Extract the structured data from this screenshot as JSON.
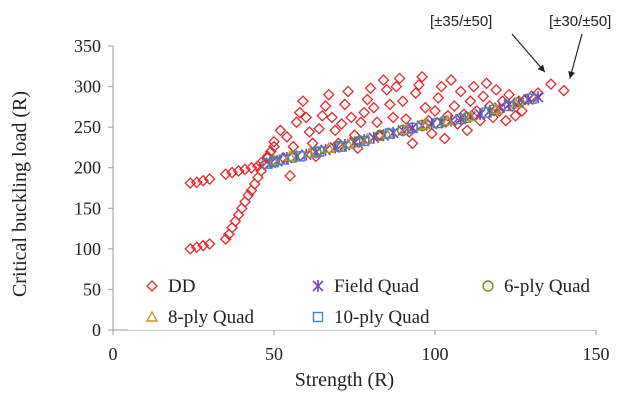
{
  "chart_data": {
    "type": "scatter",
    "xlabel": "Strength (R)",
    "ylabel": "Critical buckling load (R)",
    "xlim": [
      0,
      150
    ],
    "ylim": [
      0,
      350
    ],
    "xticks": [
      0,
      50,
      100,
      150
    ],
    "yticks": [
      0,
      50,
      100,
      150,
      200,
      250,
      300,
      350
    ],
    "grid": false,
    "legend_position": "bottom-inside",
    "annotations": [
      {
        "text": "[±35/±50]",
        "points_to": [
          136,
          303
        ]
      },
      {
        "text": "[±30/±50]",
        "points_to": [
          140,
          295
        ]
      }
    ],
    "series": [
      {
        "name": "DD",
        "marker": "diamond",
        "color": "#e8262a",
        "points": [
          [
            24,
            100
          ],
          [
            26,
            102
          ],
          [
            28,
            104
          ],
          [
            30,
            106
          ],
          [
            24,
            181
          ],
          [
            26,
            182
          ],
          [
            28,
            184
          ],
          [
            30,
            186
          ],
          [
            35,
            112
          ],
          [
            36,
            118
          ],
          [
            37,
            126
          ],
          [
            38,
            134
          ],
          [
            39,
            142
          ],
          [
            40,
            150
          ],
          [
            41,
            158
          ],
          [
            42,
            166
          ],
          [
            43,
            172
          ],
          [
            44,
            180
          ],
          [
            45,
            188
          ],
          [
            46,
            196
          ],
          [
            47,
            204
          ],
          [
            48,
            212
          ],
          [
            49,
            220
          ],
          [
            50,
            226
          ],
          [
            35,
            192
          ],
          [
            37,
            194
          ],
          [
            39,
            196
          ],
          [
            41,
            198
          ],
          [
            43,
            200
          ],
          [
            45,
            202
          ],
          [
            46,
            206
          ],
          [
            48,
            214
          ],
          [
            50,
            232
          ],
          [
            52,
            246
          ],
          [
            53,
            212
          ],
          [
            54,
            238
          ],
          [
            55,
            190
          ],
          [
            56,
            226
          ],
          [
            57,
            256
          ],
          [
            58,
            268
          ],
          [
            59,
            282
          ],
          [
            60,
            262
          ],
          [
            61,
            244
          ],
          [
            62,
            230
          ],
          [
            63,
            214
          ],
          [
            64,
            248
          ],
          [
            65,
            264
          ],
          [
            66,
            276
          ],
          [
            67,
            290
          ],
          [
            68,
            262
          ],
          [
            69,
            246
          ],
          [
            70,
            230
          ],
          [
            71,
            254
          ],
          [
            72,
            278
          ],
          [
            73,
            294
          ],
          [
            74,
            262
          ],
          [
            75,
            240
          ],
          [
            76,
            224
          ],
          [
            77,
            256
          ],
          [
            78,
            268
          ],
          [
            79,
            284
          ],
          [
            80,
            298
          ],
          [
            81,
            274
          ],
          [
            82,
            256
          ],
          [
            83,
            240
          ],
          [
            84,
            308
          ],
          [
            85,
            296
          ],
          [
            86,
            278
          ],
          [
            87,
            262
          ],
          [
            88,
            300
          ],
          [
            89,
            310
          ],
          [
            90,
            282
          ],
          [
            91,
            260
          ],
          [
            92,
            244
          ],
          [
            93,
            230
          ],
          [
            94,
            292
          ],
          [
            95,
            302
          ],
          [
            96,
            312
          ],
          [
            97,
            274
          ],
          [
            98,
            258
          ],
          [
            99,
            242
          ],
          [
            100,
            270
          ],
          [
            101,
            286
          ],
          [
            102,
            300
          ],
          [
            103,
            236
          ],
          [
            104,
            264
          ],
          [
            105,
            308
          ],
          [
            106,
            276
          ],
          [
            107,
            254
          ],
          [
            108,
            294
          ],
          [
            109,
            266
          ],
          [
            110,
            246
          ],
          [
            111,
            282
          ],
          [
            112,
            300
          ],
          [
            113,
            270
          ],
          [
            114,
            258
          ],
          [
            115,
            288
          ],
          [
            116,
            304
          ],
          [
            117,
            276
          ],
          [
            118,
            262
          ],
          [
            119,
            296
          ],
          [
            120,
            270
          ],
          [
            121,
            282
          ],
          [
            122,
            258
          ],
          [
            123,
            290
          ],
          [
            124,
            276
          ],
          [
            125,
            264
          ],
          [
            126,
            282
          ],
          [
            127,
            270
          ],
          [
            128,
            284
          ],
          [
            130,
            288
          ],
          [
            132,
            292
          ],
          [
            136,
            303
          ],
          [
            140,
            295
          ]
        ]
      },
      {
        "name": "Field Quad",
        "marker": "asterisk",
        "color": "#7b3fb5",
        "points": [
          [
            49,
            206
          ],
          [
            51,
            208
          ],
          [
            54,
            212
          ],
          [
            57,
            214
          ],
          [
            60,
            216
          ],
          [
            63,
            219
          ],
          [
            66,
            222
          ],
          [
            69,
            225
          ],
          [
            72,
            228
          ],
          [
            75,
            231
          ],
          [
            78,
            234
          ],
          [
            81,
            237
          ],
          [
            84,
            240
          ],
          [
            87,
            243
          ],
          [
            90,
            246
          ],
          [
            93,
            249
          ],
          [
            96,
            252
          ],
          [
            99,
            254
          ],
          [
            102,
            256
          ],
          [
            105,
            258
          ],
          [
            108,
            260
          ],
          [
            111,
            263
          ],
          [
            114,
            266
          ],
          [
            117,
            270
          ],
          [
            120,
            274
          ],
          [
            123,
            278
          ],
          [
            126,
            280
          ],
          [
            129,
            284
          ],
          [
            132,
            287
          ]
        ]
      },
      {
        "name": "6-ply Quad",
        "marker": "circle",
        "color": "#6b8e23",
        "points": [
          [
            50,
            208
          ],
          [
            56,
            213
          ],
          [
            63,
            219
          ],
          [
            70,
            226
          ],
          [
            76,
            232
          ],
          [
            83,
            240
          ],
          [
            90,
            246
          ],
          [
            96,
            252
          ],
          [
            103,
            257
          ],
          [
            110,
            262
          ],
          [
            118,
            271
          ],
          [
            126,
            280
          ]
        ]
      },
      {
        "name": "8-ply Quad",
        "marker": "triangle",
        "color": "#c8962e",
        "points": [
          [
            50,
            209
          ],
          [
            55,
            214
          ],
          [
            61,
            218
          ],
          [
            67,
            224
          ],
          [
            73,
            229
          ],
          [
            79,
            235
          ],
          [
            85,
            242
          ],
          [
            91,
            247
          ],
          [
            97,
            253
          ],
          [
            104,
            258
          ],
          [
            111,
            263
          ],
          [
            119,
            272
          ],
          [
            125,
            279
          ]
        ]
      },
      {
        "name": "10-ply Quad",
        "marker": "square",
        "color": "#3d85c6",
        "points": [
          [
            48,
            205
          ],
          [
            50,
            207
          ],
          [
            53,
            210
          ],
          [
            58,
            214
          ],
          [
            64,
            220
          ],
          [
            71,
            226
          ],
          [
            78,
            233
          ],
          [
            86,
            242
          ],
          [
            93,
            249
          ],
          [
            101,
            255
          ],
          [
            108,
            260
          ],
          [
            116,
            268
          ],
          [
            123,
            276
          ],
          [
            130,
            285
          ]
        ]
      }
    ]
  }
}
